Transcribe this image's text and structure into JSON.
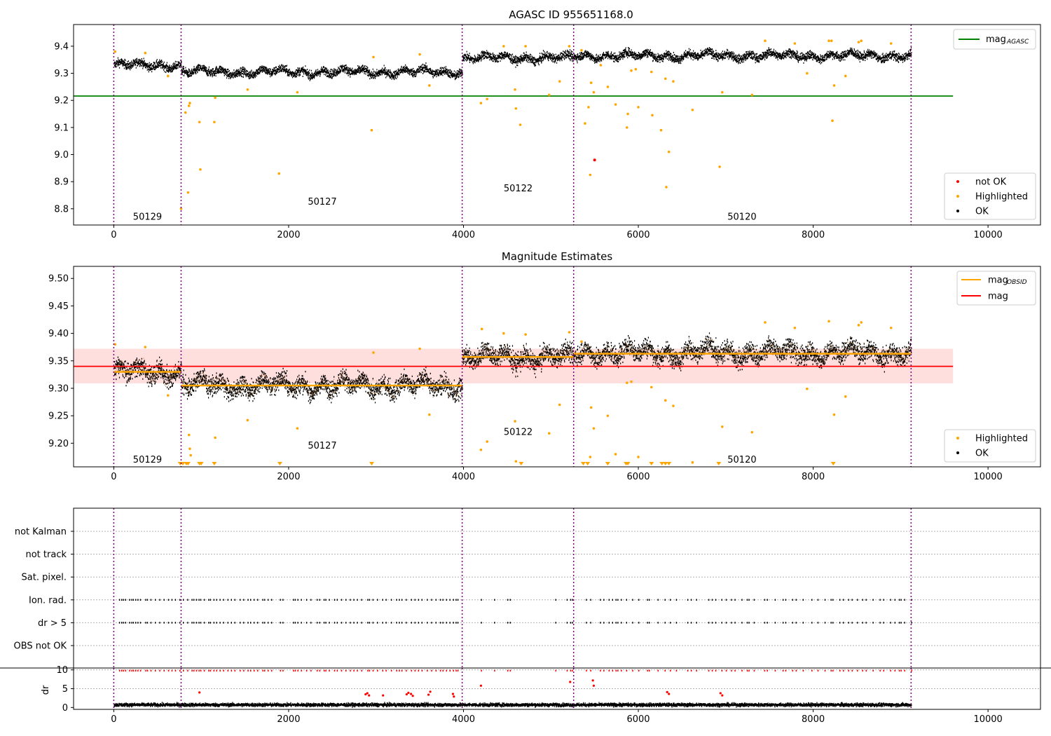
{
  "chart_data": [
    {
      "type": "scatter",
      "title": "AGASC ID 955651168.0",
      "xlim": [
        -460,
        10600
      ],
      "ylim": [
        8.74,
        9.48
      ],
      "xticks": [
        0,
        2000,
        4000,
        6000,
        8000,
        10000
      ],
      "yticks": [
        8.8,
        8.9,
        9.0,
        9.1,
        9.2,
        9.3,
        9.4
      ],
      "grid": false,
      "obsid_boundaries": [
        0,
        770,
        3985,
        5260,
        9120
      ],
      "obsid_labels": [
        {
          "label": "50129",
          "x": 380,
          "y": 8.77
        },
        {
          "label": "50127",
          "x": 2380,
          "y": 8.825
        },
        {
          "label": "50122",
          "x": 4620,
          "y": 8.875
        },
        {
          "label": "50120",
          "x": 7180,
          "y": 8.77
        }
      ],
      "mag_agasc": 9.216,
      "mag_agasc_xrange": [
        -460,
        9600
      ],
      "segments": [
        {
          "x": [
            0,
            770
          ],
          "base": 9.33
        },
        {
          "x": [
            770,
            3985
          ],
          "base": 9.305
        },
        {
          "x": [
            3985,
            5260
          ],
          "base": 9.357
        },
        {
          "x": [
            5260,
            9120
          ],
          "base": 9.365
        }
      ],
      "highlighted": [
        [
          15,
          9.38
        ],
        [
          360,
          9.375
        ],
        [
          620,
          9.29
        ],
        [
          770,
          8.8
        ],
        [
          820,
          9.155
        ],
        [
          850,
          8.86
        ],
        [
          860,
          9.18
        ],
        [
          870,
          9.19
        ],
        [
          980,
          9.12
        ],
        [
          990,
          8.945
        ],
        [
          1150,
          9.12
        ],
        [
          1160,
          9.21
        ],
        [
          1530,
          9.24
        ],
        [
          1890,
          8.93
        ],
        [
          2100,
          9.23
        ],
        [
          2950,
          9.09
        ],
        [
          2970,
          9.36
        ],
        [
          3500,
          9.37
        ],
        [
          3610,
          9.255
        ],
        [
          4200,
          9.19
        ],
        [
          4270,
          9.205
        ],
        [
          4460,
          9.4
        ],
        [
          4590,
          9.24
        ],
        [
          4600,
          9.17
        ],
        [
          4650,
          9.11
        ],
        [
          4710,
          9.4
        ],
        [
          4980,
          9.22
        ],
        [
          5100,
          9.27
        ],
        [
          5210,
          9.4
        ],
        [
          5350,
          9.385
        ],
        [
          5390,
          9.115
        ],
        [
          5430,
          9.175
        ],
        [
          5450,
          8.925
        ],
        [
          5460,
          9.265
        ],
        [
          5490,
          9.23
        ],
        [
          5570,
          9.33
        ],
        [
          5650,
          9.25
        ],
        [
          5740,
          9.185
        ],
        [
          5870,
          9.1
        ],
        [
          5880,
          9.15
        ],
        [
          5920,
          9.31
        ],
        [
          5970,
          9.315
        ],
        [
          6000,
          9.175
        ],
        [
          6150,
          9.305
        ],
        [
          6160,
          9.145
        ],
        [
          6260,
          9.09
        ],
        [
          6310,
          9.28
        ],
        [
          6320,
          8.88
        ],
        [
          6350,
          9.01
        ],
        [
          6400,
          9.27
        ],
        [
          6620,
          9.165
        ],
        [
          6930,
          8.955
        ],
        [
          6960,
          9.23
        ],
        [
          7300,
          9.22
        ],
        [
          7450,
          9.42
        ],
        [
          7790,
          9.41
        ],
        [
          7930,
          9.3
        ],
        [
          8180,
          9.42
        ],
        [
          8210,
          9.42
        ],
        [
          8220,
          9.125
        ],
        [
          8240,
          9.255
        ],
        [
          8370,
          9.29
        ],
        [
          8520,
          9.415
        ],
        [
          8550,
          9.42
        ],
        [
          8890,
          9.41
        ]
      ],
      "not_ok": [
        [
          5500,
          8.98
        ]
      ],
      "legend_lines": [
        {
          "name": "mag",
          "sub": "AGASC",
          "color": "#008000"
        }
      ],
      "legend_points": [
        {
          "name": "not OK",
          "color": "#ff0000"
        },
        {
          "name": "Highlighted",
          "color": "#ffa500"
        },
        {
          "name": "OK",
          "color": "#000000"
        }
      ]
    },
    {
      "type": "scatter",
      "title": "Magnitude Estimates",
      "xlim": [
        -460,
        10600
      ],
      "ylim": [
        9.157,
        9.522
      ],
      "xticks": [
        0,
        2000,
        4000,
        6000,
        8000,
        10000
      ],
      "yticks": [
        9.2,
        9.25,
        9.3,
        9.35,
        9.4,
        9.45,
        9.5
      ],
      "grid": false,
      "obsid_labels": [
        {
          "label": "50129",
          "x": 380,
          "y": 9.17
        },
        {
          "label": "50127",
          "x": 2380,
          "y": 9.195
        },
        {
          "label": "50122",
          "x": 4620,
          "y": 9.22
        },
        {
          "label": "50120",
          "x": 7180,
          "y": 9.17
        }
      ],
      "mag": 9.34,
      "mag_band": [
        9.309,
        9.372
      ],
      "mag_obsid": [
        {
          "x": [
            0,
            770
          ],
          "y": 9.33
        },
        {
          "x": [
            770,
            3985
          ],
          "y": 9.305
        },
        {
          "x": [
            3985,
            5260
          ],
          "y": 9.357
        },
        {
          "x": [
            5260,
            9120
          ],
          "y": 9.363
        }
      ],
      "highlighted": [
        [
          15,
          9.38
        ],
        [
          360,
          9.375
        ],
        [
          620,
          9.287
        ],
        [
          860,
          9.215
        ],
        [
          870,
          9.19
        ],
        [
          880,
          9.178
        ],
        [
          1160,
          9.21
        ],
        [
          1530,
          9.242
        ],
        [
          2100,
          9.227
        ],
        [
          2970,
          9.365
        ],
        [
          3500,
          9.372
        ],
        [
          3610,
          9.252
        ],
        [
          4200,
          9.188
        ],
        [
          4210,
          9.408
        ],
        [
          4270,
          9.203
        ],
        [
          4460,
          9.4
        ],
        [
          4590,
          9.24
        ],
        [
          4600,
          9.167
        ],
        [
          4710,
          9.398
        ],
        [
          4980,
          9.218
        ],
        [
          5100,
          9.27
        ],
        [
          5210,
          9.402
        ],
        [
          5350,
          9.385
        ],
        [
          5450,
          9.175
        ],
        [
          5460,
          9.265
        ],
        [
          5490,
          9.227
        ],
        [
          5650,
          9.25
        ],
        [
          5740,
          9.18
        ],
        [
          5870,
          9.31
        ],
        [
          5920,
          9.312
        ],
        [
          6000,
          9.175
        ],
        [
          6150,
          9.302
        ],
        [
          6310,
          9.278
        ],
        [
          6400,
          9.268
        ],
        [
          6620,
          9.165
        ],
        [
          6960,
          9.23
        ],
        [
          7300,
          9.22
        ],
        [
          7450,
          9.42
        ],
        [
          7790,
          9.41
        ],
        [
          7930,
          9.299
        ],
        [
          8180,
          9.422
        ],
        [
          8240,
          9.252
        ],
        [
          8370,
          9.285
        ],
        [
          8520,
          9.415
        ],
        [
          8550,
          9.42
        ],
        [
          8890,
          9.41
        ]
      ],
      "below_range_markers": [
        760,
        790,
        830,
        850,
        980,
        1000,
        1150,
        1900,
        2950,
        4660,
        5370,
        5420,
        5650,
        5860,
        5880,
        6150,
        6270,
        6310,
        6350,
        6920,
        8230
      ],
      "legend_lines": [
        {
          "name": "mag",
          "sub": "OBSID",
          "color": "#ffa500"
        },
        {
          "name": "mag",
          "sub": "",
          "color": "#ff0000"
        }
      ],
      "legend_points": [
        {
          "name": "Highlighted",
          "color": "#ffa500"
        },
        {
          "name": "OK",
          "color": "#000000"
        }
      ]
    },
    {
      "type": "scatter",
      "xlim": [
        -460,
        10600
      ],
      "xticks": [
        0,
        2000,
        4000,
        6000,
        8000,
        10000
      ],
      "flag_rows": [
        "not Kalman",
        "not track",
        "Sat. pixel.",
        "Ion. rad.",
        "dr > 5",
        "OBS not OK"
      ],
      "flag_times": [
        60,
        85,
        105,
        130,
        175,
        200,
        220,
        245,
        270,
        300,
        360,
        380,
        420,
        470,
        520,
        570,
        620,
        660,
        700,
        750,
        790,
        840,
        890,
        910,
        940,
        970,
        990,
        1030,
        1080,
        1100,
        1140,
        1170,
        1210,
        1250,
        1300,
        1340,
        1380,
        1440,
        1480,
        1530,
        1560,
        1600,
        1640,
        1700,
        1720,
        1760,
        1800,
        1900,
        1930,
        2050,
        2070,
        2100,
        2140,
        2200,
        2250,
        2320,
        2350,
        2400,
        2420,
        2460,
        2520,
        2550,
        2600,
        2650,
        2700,
        2740,
        2780,
        2830,
        2900,
        2920,
        2960,
        3010,
        3070,
        3110,
        3170,
        3230,
        3260,
        3290,
        3340,
        3400,
        3440,
        3480,
        3520,
        3580,
        3630,
        3680,
        3730,
        3760,
        3800,
        3840,
        3880,
        3910,
        3930,
        4200,
        4350,
        4500,
        4530,
        5050,
        5180,
        5220,
        5240,
        5400,
        5450,
        5560,
        5600,
        5660,
        5700,
        5740,
        5760,
        5800,
        5860,
        5930,
        6000,
        6100,
        6120,
        6220,
        6300,
        6360,
        6430,
        6560,
        6600,
        6660,
        6800,
        6840,
        6880,
        6950,
        7000,
        7060,
        7100,
        7180,
        7240,
        7260,
        7320,
        7440,
        7470,
        7560,
        7650,
        7680,
        7760,
        7800,
        7880,
        7980,
        8050,
        8130,
        8200,
        8220,
        8300,
        8340,
        8400,
        8440,
        8500,
        8560,
        8600,
        8680,
        8760,
        8800,
        8880,
        8930,
        8980,
        9000,
        9040,
        9120
      ]
    },
    {
      "type": "scatter",
      "xlim": [
        -460,
        10600
      ],
      "ylim": [
        -0.5,
        10.5
      ],
      "yticks": [
        0,
        5,
        10
      ],
      "ylabel": "dr",
      "xticks": [
        0,
        2000,
        4000,
        6000,
        8000,
        10000
      ],
      "outliers": [
        [
          980,
          4
        ],
        [
          2880,
          3.5
        ],
        [
          2900,
          3.8
        ],
        [
          2920,
          3.2
        ],
        [
          3080,
          3.2
        ],
        [
          3350,
          3.5
        ],
        [
          3370,
          3.9
        ],
        [
          3400,
          3.6
        ],
        [
          3420,
          3.1
        ],
        [
          3600,
          3.4
        ],
        [
          3620,
          4.2
        ],
        [
          3880,
          3.6
        ],
        [
          3890,
          2.9
        ],
        [
          4200,
          5.8
        ],
        [
          5220,
          6.8
        ],
        [
          5480,
          7.2
        ],
        [
          5490,
          5.8
        ],
        [
          6330,
          4.1
        ],
        [
          6350,
          3.6
        ],
        [
          6940,
          3.8
        ],
        [
          6960,
          3.2
        ]
      ]
    }
  ]
}
